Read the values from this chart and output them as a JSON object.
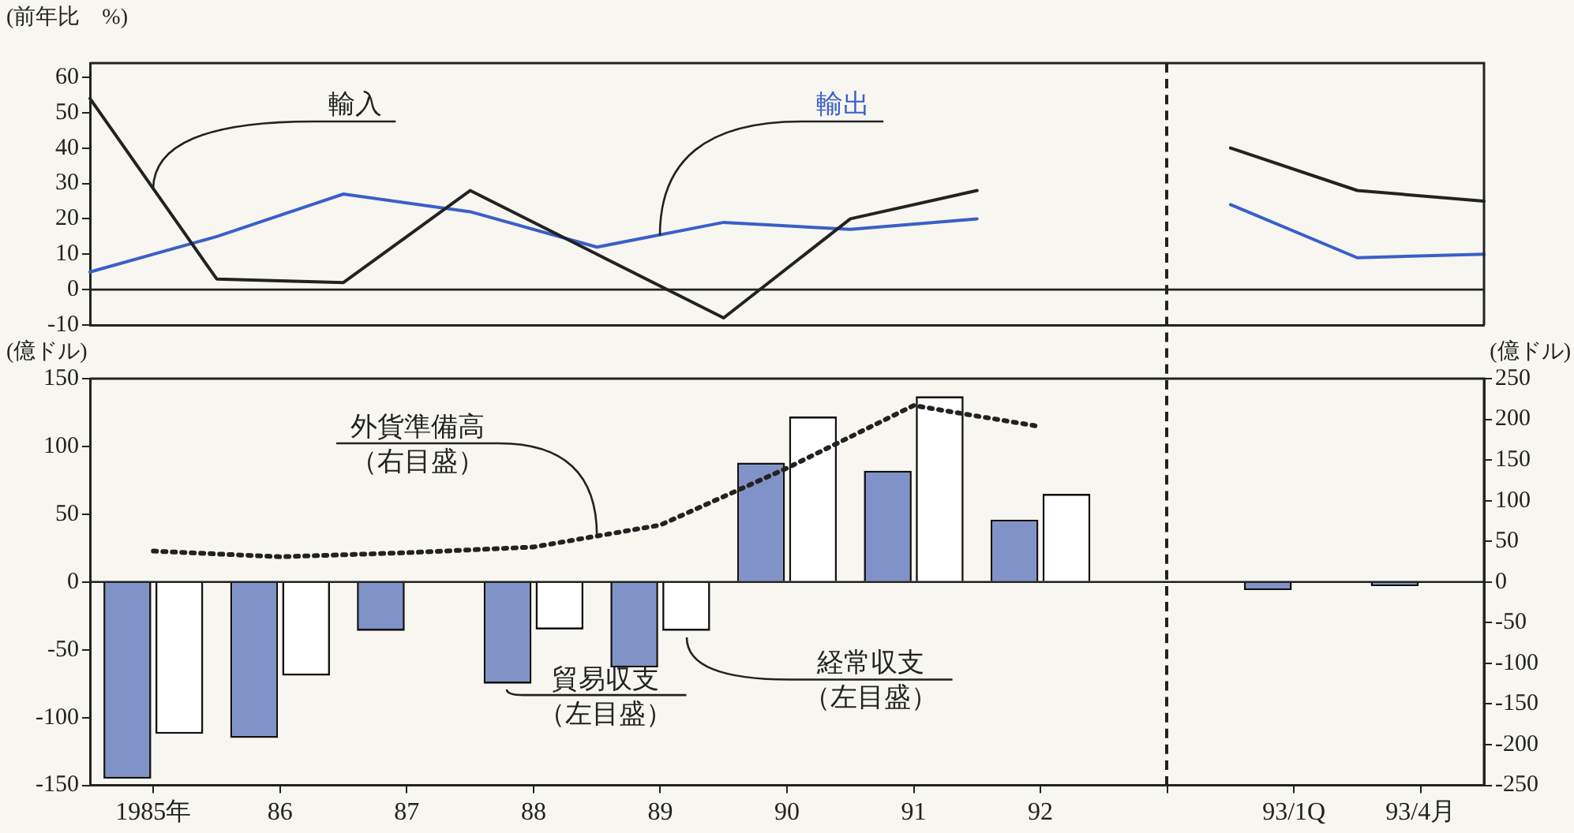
{
  "chart_data": [
    {
      "type": "line",
      "ylabel": "(前年比　%)",
      "categories": [
        null,
        null,
        null,
        null,
        null,
        null,
        null,
        null,
        null,
        null,
        null,
        null
      ],
      "series": [
        {
          "name": "輸入",
          "color": "#222222",
          "values": [
            54,
            3,
            2,
            28,
            10,
            -8,
            20,
            28,
            null,
            null,
            null,
            null
          ]
        },
        {
          "name": "輸出",
          "color": "#3a5fc8",
          "values": [
            5,
            15,
            27,
            22,
            12,
            19,
            17,
            20,
            null,
            null,
            null,
            null
          ]
        },
        {
          "color": "#222222",
          "values": [
            null,
            null,
            null,
            null,
            null,
            null,
            null,
            null,
            null,
            40,
            28,
            25
          ]
        },
        {
          "color": "#3a5fc8",
          "values": [
            null,
            null,
            null,
            null,
            null,
            null,
            null,
            null,
            null,
            24,
            9,
            10
          ]
        }
      ],
      "ylim": [
        -10,
        64
      ],
      "yticks": [
        -10,
        0,
        10,
        20,
        30,
        40,
        50,
        60
      ],
      "ref_lines": [
        {
          "axis": "y",
          "value": 0
        }
      ],
      "grid": false,
      "legend": false,
      "marker": "none",
      "tick_labels": "y"
    },
    {
      "type": "bar",
      "ylabel": "(億ドル)",
      "y2label": "(億ドル)",
      "categories": [
        "1985年",
        "86",
        "87",
        "88",
        "89",
        "90",
        "91",
        "92",
        null,
        "93/1Q",
        "93/4月"
      ],
      "series": [
        {
          "name": "貿易収支（左目盛）",
          "color": "#8093c8",
          "values": [
            -145,
            -115,
            -36,
            -75,
            -63,
            88,
            82,
            46,
            null,
            -6,
            -3
          ]
        },
        {
          "name": "経常収支（左目盛）",
          "color": "#ffffff",
          "values": [
            -112,
            -69,
            null,
            -35,
            -36,
            122,
            137,
            65,
            null,
            null,
            null
          ]
        },
        {
          "name": "外貨準備高（右目盛）",
          "type": "line",
          "axis": "y2",
          "line_style": "dotted",
          "color": "#222222",
          "values": [
            38,
            31,
            36,
            43,
            70,
            140,
            217,
            191,
            null,
            null,
            null
          ]
        }
      ],
      "ylim": [
        -150,
        150
      ],
      "yticks": [
        -150,
        -100,
        -50,
        0,
        50,
        100,
        150
      ],
      "y2lim": [
        -250,
        250
      ],
      "y2ticks": [
        -250,
        -200,
        -150,
        -100,
        -50,
        0,
        50,
        100,
        150,
        200,
        250
      ],
      "ref_lines": [
        {
          "axis": "y",
          "value": 0
        }
      ],
      "grid": false,
      "legend": false,
      "marker": "none"
    }
  ]
}
